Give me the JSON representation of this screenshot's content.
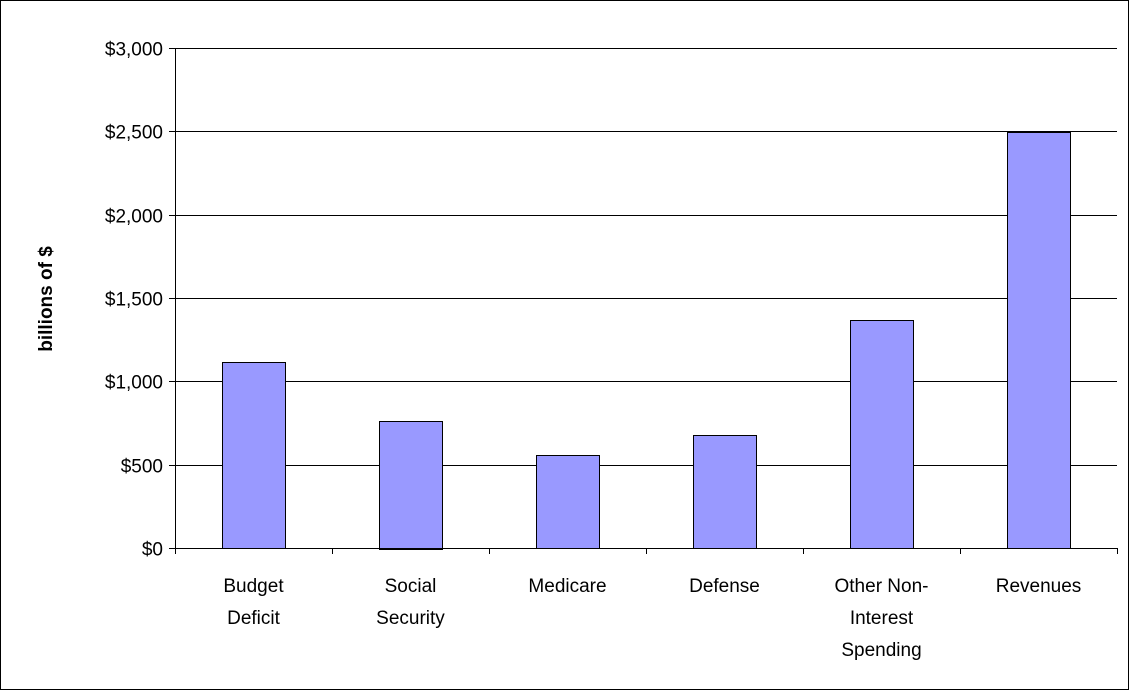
{
  "chart_data": {
    "type": "bar",
    "categories": [
      [
        "Budget",
        "Deficit"
      ],
      [
        "Social",
        "Security"
      ],
      [
        "Medicare"
      ],
      [
        "Defense"
      ],
      [
        "Other Non-",
        "Interest",
        "Spending"
      ],
      [
        "Revenues"
      ]
    ],
    "category_names": [
      "Budget Deficit",
      "Social Security",
      "Medicare",
      "Defense",
      "Other Non-Interest Spending",
      "Revenues"
    ],
    "values": [
      1115,
      765,
      560,
      680,
      1370,
      2495
    ],
    "title": "",
    "xlabel": "",
    "ylabel": "billions of $",
    "ylim": [
      0,
      3000
    ],
    "yticks": [
      0,
      500,
      1000,
      1500,
      2000,
      2500,
      3000
    ],
    "ytick_labels": [
      "$0",
      "$500",
      "$1,000",
      "$1,500",
      "$2,000",
      "$2,500",
      "$3,000"
    ],
    "grid": true,
    "legend": "none",
    "colors": {
      "bar_fill": "#9999ff",
      "bar_stroke": "#000000",
      "grid": "#000000",
      "axis": "#000000"
    }
  }
}
